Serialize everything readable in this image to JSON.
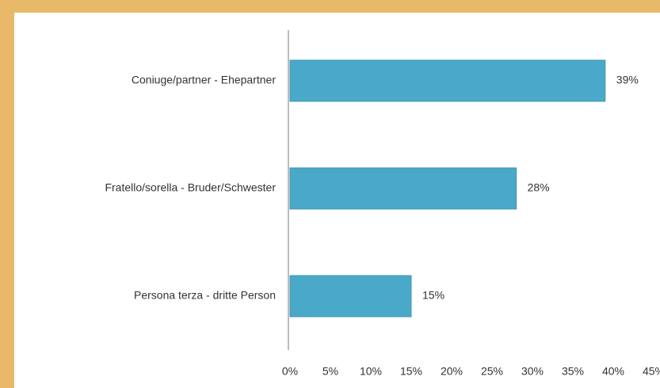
{
  "chart_data": {
    "type": "bar",
    "orientation": "horizontal",
    "categories": [
      "Coniuge/partner - Ehepartner",
      "Fratello/sorella - Bruder/Schwester",
      "Persona terza - dritte Person"
    ],
    "values": [
      39,
      28,
      15
    ],
    "value_labels": [
      "39%",
      "28%",
      "15%"
    ],
    "color": "#4aa9c8",
    "xlim": [
      0,
      45
    ],
    "xticks": [
      {
        "value": 0,
        "label": "0%"
      },
      {
        "value": 5,
        "label": "5%"
      },
      {
        "value": 10,
        "label": "10%"
      },
      {
        "value": 15,
        "label": "15%"
      },
      {
        "value": 20,
        "label": "20%"
      },
      {
        "value": 25,
        "label": "25%"
      },
      {
        "value": 30,
        "label": "30%"
      },
      {
        "value": 35,
        "label": "35%"
      },
      {
        "value": 40,
        "label": "40%"
      },
      {
        "value": 45,
        "label": "45%"
      }
    ],
    "grid": false
  }
}
